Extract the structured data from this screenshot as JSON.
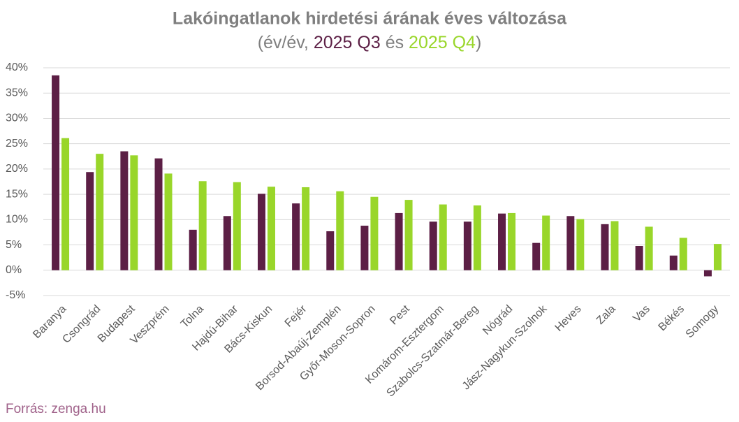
{
  "chart_data": {
    "type": "bar",
    "title": "Lakóingatlanok hirdetési árának éves változása",
    "subtitle_parts": [
      "(év/év, ",
      " és ",
      ")"
    ],
    "categories": [
      "Baranya",
      "Csongrád",
      "Budapest",
      "Veszprém",
      "Tolna",
      "Hajdú-Bihar",
      "Bács-Kiskun",
      "Fejér",
      "Borsod-Abaúj-Zemplén",
      "Győr-Moson-Sopron",
      "Pest",
      "Komárom-Esztergom",
      "Szabolcs-Szatmár-Bereg",
      "Nógrád",
      "Jász-Nagykun-Szolnok",
      "Heves",
      "Zala",
      "Vas",
      "Békés",
      "Somogy"
    ],
    "series": [
      {
        "name": "2025 Q3",
        "color": "#5c1f45",
        "values": [
          38.5,
          19.4,
          23.5,
          22.1,
          8.0,
          10.7,
          15.1,
          13.2,
          7.7,
          8.8,
          11.3,
          9.6,
          9.6,
          11.2,
          5.4,
          10.7,
          9.1,
          4.8,
          2.9,
          -1.2
        ]
      },
      {
        "name": "2025 Q4",
        "color": "#99d62a",
        "values": [
          26.1,
          23.0,
          22.7,
          19.1,
          17.6,
          17.4,
          16.5,
          16.4,
          15.6,
          14.5,
          13.9,
          13.0,
          12.8,
          11.3,
          10.8,
          10.1,
          9.7,
          8.6,
          6.4,
          5.2
        ]
      }
    ],
    "ylim": [
      -5,
      40
    ],
    "yticks": [
      {
        "value": -5,
        "label": "-5%"
      },
      {
        "value": 0,
        "label": "0%"
      },
      {
        "value": 5,
        "label": "5%"
      },
      {
        "value": 10,
        "label": "10%"
      },
      {
        "value": 15,
        "label": "15%"
      },
      {
        "value": 20,
        "label": "20%"
      },
      {
        "value": 25,
        "label": "25%"
      },
      {
        "value": 30,
        "label": "30%"
      },
      {
        "value": 35,
        "label": "35%"
      },
      {
        "value": 40,
        "label": "40%"
      }
    ],
    "grid": true,
    "source": "Forrás: zenga.hu"
  }
}
